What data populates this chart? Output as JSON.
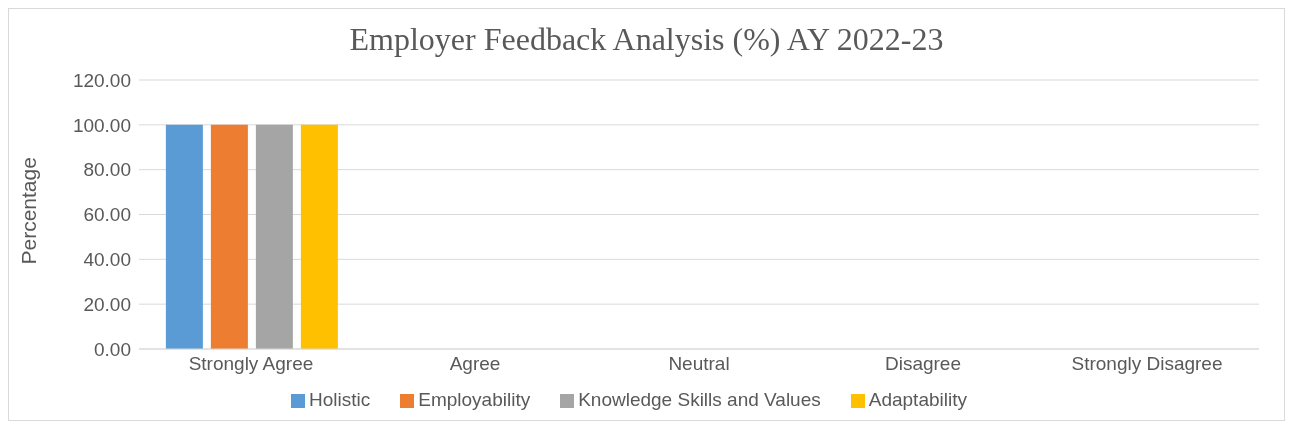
{
  "chart_data": {
    "type": "bar",
    "title": "Employer Feedback Analysis (%) AY 2022-23",
    "ylabel": "Percentage",
    "categories": [
      "Strongly Agree",
      "Agree",
      "Neutral",
      "Disagree",
      "Strongly Disagree"
    ],
    "series": [
      {
        "name": "Holistic",
        "color": "#5b9bd5",
        "values": [
          100,
          0,
          0,
          0,
          0
        ]
      },
      {
        "name": "Employability",
        "color": "#ed7d31",
        "values": [
          100,
          0,
          0,
          0,
          0
        ]
      },
      {
        "name": "Knowledge Skills and Values",
        "color": "#a5a5a5",
        "values": [
          100,
          0,
          0,
          0,
          0
        ]
      },
      {
        "name": "Adaptability",
        "color": "#ffc000",
        "values": [
          100,
          0,
          0,
          0,
          0
        ]
      }
    ],
    "ylim": [
      0,
      120
    ],
    "yticks": [
      {
        "value": 0,
        "label": "0.00"
      },
      {
        "value": 20,
        "label": "20.00"
      },
      {
        "value": 40,
        "label": "40.00"
      },
      {
        "value": 60,
        "label": "60.00"
      },
      {
        "value": 80,
        "label": "80.00"
      },
      {
        "value": 100,
        "label": "100.00"
      },
      {
        "value": 120,
        "label": "120.00"
      }
    ],
    "grid": "y",
    "legend": "bottom"
  }
}
